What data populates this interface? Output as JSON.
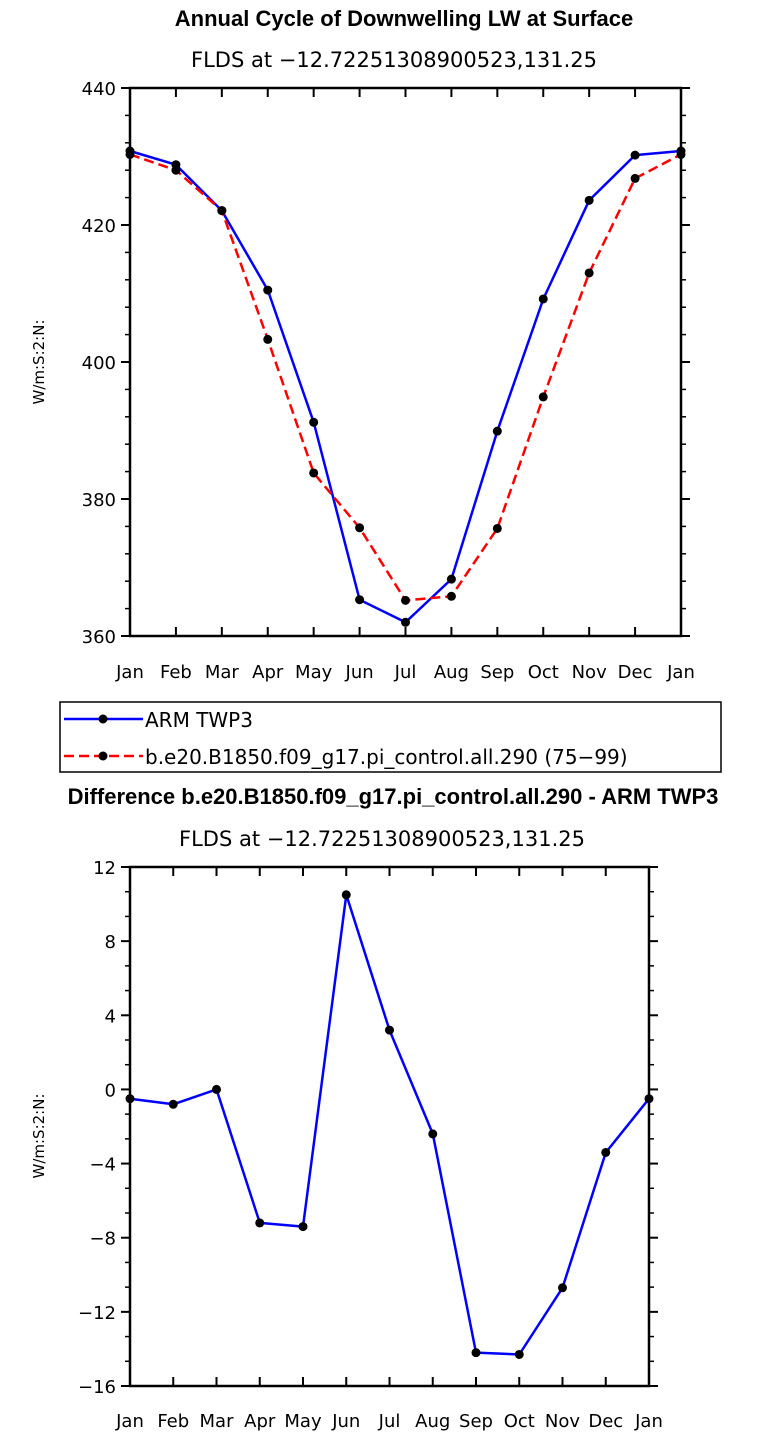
{
  "chart_data": [
    {
      "type": "line",
      "title": "Annual Cycle of Downwelling LW at Surface",
      "subtitle": "FLDS at −12.72251308900523,131.25",
      "xlabel": "",
      "ylabel": "W/m:S:2:N:",
      "categories": [
        "Jan",
        "Feb",
        "Mar",
        "Apr",
        "May",
        "Jun",
        "Jul",
        "Aug",
        "Sep",
        "Oct",
        "Nov",
        "Dec",
        "Jan"
      ],
      "ylim": [
        360,
        440
      ],
      "yticks": [
        "360",
        "380",
        "400",
        "420",
        "440"
      ],
      "grid": false,
      "legend_position": "bottom",
      "series": [
        {
          "name": "ARM TWP3",
          "color": "#0000ff",
          "dash": "solid",
          "values": [
            430.8,
            428.8,
            422.1,
            410.5,
            391.2,
            365.3,
            362.0,
            368.3,
            389.9,
            409.2,
            423.6,
            430.2,
            430.8
          ]
        },
        {
          "name": "b.e20.B1850.f09_g17.pi_control.all.290 (75−99)",
          "color": "#ff0000",
          "dash": "dashed",
          "values": [
            430.3,
            428.0,
            422.1,
            403.3,
            383.8,
            375.8,
            365.2,
            365.8,
            375.7,
            394.9,
            413.0,
            426.8,
            430.3
          ]
        }
      ]
    },
    {
      "type": "line",
      "title": "Difference b.e20.B1850.f09_g17.pi_control.all.290 - ARM TWP3",
      "subtitle": "FLDS at −12.72251308900523,131.25",
      "xlabel": "",
      "ylabel": "W/m:S:2:N:",
      "categories": [
        "Jan",
        "Feb",
        "Mar",
        "Apr",
        "May",
        "Jun",
        "Jul",
        "Aug",
        "Sep",
        "Oct",
        "Nov",
        "Dec",
        "Jan"
      ],
      "ylim": [
        -16,
        12
      ],
      "yticks": [
        "−16",
        "−12",
        "−8",
        "−4",
        "0",
        "4",
        "8",
        "12"
      ],
      "grid": false,
      "series": [
        {
          "color": "#0000ff",
          "dash": "solid",
          "values": [
            -0.5,
            -0.8,
            0.0,
            -7.2,
            -7.4,
            10.5,
            3.2,
            -2.4,
            -14.2,
            -14.3,
            -10.7,
            -3.4,
            -0.5
          ]
        }
      ]
    }
  ]
}
